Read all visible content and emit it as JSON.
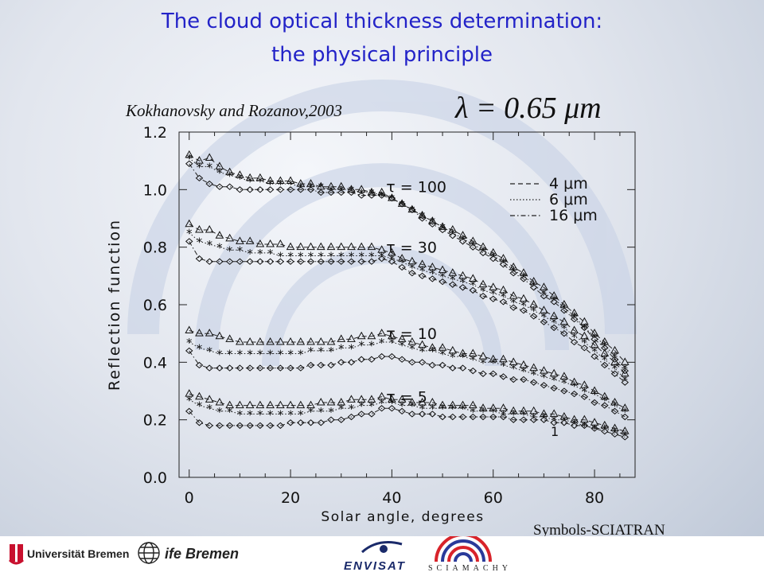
{
  "slide": {
    "title_line1": "The cloud optical thickness determination:",
    "title_line2": "the physical principle",
    "symbols_note": "Symbols-SCIATRAN"
  },
  "logos": {
    "uni": "Universität Bremen",
    "ife": "ife Bremen",
    "envisat": "ENVISAT",
    "sciamachy": "SCIAMACHY"
  },
  "colors": {
    "title": "#2323c8",
    "ink": "#111111"
  },
  "chart_data": {
    "type": "line",
    "citation": "Kokhanovsky and Rozanov,2003",
    "wavelength_label": "λ = 0.65 μm",
    "xlabel": "Solar angle, degrees",
    "ylabel": "Reflection function",
    "xlim": [
      -2,
      88
    ],
    "ylim": [
      0.0,
      1.2
    ],
    "xticks": [
      0,
      20,
      40,
      60,
      80
    ],
    "xtick_labels": [
      "0",
      "20",
      "40",
      "60",
      "80"
    ],
    "yticks": [
      0.0,
      0.2,
      0.4,
      0.6,
      0.8,
      1.0,
      1.2
    ],
    "ytick_labels": [
      "0.0",
      "0.2",
      "0.4",
      "0.6",
      "0.8",
      "1.0",
      "1.2"
    ],
    "legend": [
      {
        "dash": "--",
        "label": "4 μm"
      },
      {
        "dash": "....",
        "label": "6 μm"
      },
      {
        "dash": "-.-",
        "label": "16 μm"
      }
    ],
    "tau_labels": [
      {
        "text": "τ = 100",
        "x": 37,
        "y": 1.01
      },
      {
        "text": "τ = 30",
        "x": 37,
        "y": 0.8
      },
      {
        "text": "τ = 10",
        "x": 37,
        "y": 0.5
      },
      {
        "text": "τ = 5",
        "x": 37,
        "y": 0.28
      }
    ],
    "annotation": {
      "text": "1",
      "x": 65,
      "y": 0.14
    },
    "x": [
      0,
      2,
      4,
      6,
      8,
      10,
      12,
      14,
      16,
      18,
      20,
      22,
      24,
      26,
      28,
      30,
      32,
      34,
      36,
      38,
      40,
      42,
      44,
      46,
      48,
      50,
      52,
      54,
      56,
      58,
      60,
      62,
      64,
      66,
      68,
      70,
      72,
      74,
      76,
      78,
      80,
      82,
      84,
      86
    ],
    "series": [
      {
        "group": "τ = 100",
        "size": "4 μm",
        "marker": "triangle",
        "dash": "--",
        "values": [
          1.12,
          1.1,
          1.11,
          1.08,
          1.06,
          1.05,
          1.04,
          1.04,
          1.03,
          1.03,
          1.03,
          1.02,
          1.02,
          1.01,
          1.01,
          1.01,
          1.0,
          1.0,
          0.99,
          0.99,
          0.97,
          0.95,
          0.93,
          0.91,
          0.89,
          0.87,
          0.86,
          0.84,
          0.82,
          0.8,
          0.78,
          0.76,
          0.73,
          0.71,
          0.68,
          0.66,
          0.63,
          0.6,
          0.57,
          0.54,
          0.5,
          0.47,
          0.44,
          0.4
        ]
      },
      {
        "group": "τ = 100",
        "size": "6 μm",
        "marker": "star",
        "dash": "....",
        "values": [
          1.11,
          1.08,
          1.08,
          1.06,
          1.05,
          1.04,
          1.03,
          1.03,
          1.02,
          1.02,
          1.02,
          1.01,
          1.01,
          1.01,
          1.0,
          1.0,
          1.0,
          0.99,
          0.99,
          0.98,
          0.97,
          0.95,
          0.93,
          0.91,
          0.89,
          0.87,
          0.85,
          0.83,
          0.81,
          0.79,
          0.77,
          0.75,
          0.72,
          0.7,
          0.67,
          0.64,
          0.62,
          0.59,
          0.56,
          0.52,
          0.49,
          0.46,
          0.42,
          0.38
        ]
      },
      {
        "group": "τ = 100",
        "size": "16 μm",
        "marker": "diamond",
        "dash": "-.-",
        "values": [
          1.09,
          1.04,
          1.02,
          1.01,
          1.01,
          1.0,
          1.0,
          1.0,
          1.0,
          1.0,
          1.0,
          1.0,
          1.0,
          0.99,
          0.99,
          0.99,
          0.99,
          0.98,
          0.98,
          0.98,
          0.97,
          0.95,
          0.93,
          0.9,
          0.88,
          0.86,
          0.84,
          0.82,
          0.8,
          0.78,
          0.76,
          0.74,
          0.71,
          0.69,
          0.66,
          0.63,
          0.61,
          0.58,
          0.55,
          0.52,
          0.48,
          0.45,
          0.41,
          0.37
        ]
      },
      {
        "group": "τ = 30",
        "size": "4 μm",
        "marker": "triangle",
        "dash": "--",
        "values": [
          0.88,
          0.86,
          0.86,
          0.84,
          0.83,
          0.82,
          0.82,
          0.81,
          0.81,
          0.81,
          0.8,
          0.8,
          0.8,
          0.8,
          0.8,
          0.8,
          0.8,
          0.8,
          0.8,
          0.79,
          0.78,
          0.76,
          0.75,
          0.74,
          0.73,
          0.72,
          0.71,
          0.7,
          0.69,
          0.67,
          0.66,
          0.65,
          0.63,
          0.62,
          0.6,
          0.58,
          0.56,
          0.54,
          0.51,
          0.49,
          0.46,
          0.43,
          0.4,
          0.36
        ]
      },
      {
        "group": "τ = 30",
        "size": "6 μm",
        "marker": "star",
        "dash": "....",
        "values": [
          0.85,
          0.82,
          0.81,
          0.8,
          0.79,
          0.79,
          0.78,
          0.78,
          0.78,
          0.77,
          0.77,
          0.77,
          0.77,
          0.77,
          0.77,
          0.77,
          0.77,
          0.77,
          0.77,
          0.77,
          0.76,
          0.75,
          0.73,
          0.72,
          0.71,
          0.7,
          0.69,
          0.68,
          0.67,
          0.65,
          0.64,
          0.63,
          0.61,
          0.6,
          0.58,
          0.56,
          0.54,
          0.52,
          0.49,
          0.47,
          0.44,
          0.41,
          0.38,
          0.34
        ]
      },
      {
        "group": "τ = 30",
        "size": "16 μm",
        "marker": "diamond",
        "dash": "-.-",
        "values": [
          0.82,
          0.76,
          0.75,
          0.75,
          0.75,
          0.75,
          0.75,
          0.75,
          0.75,
          0.75,
          0.75,
          0.75,
          0.75,
          0.75,
          0.75,
          0.75,
          0.75,
          0.75,
          0.75,
          0.76,
          0.75,
          0.73,
          0.71,
          0.7,
          0.69,
          0.68,
          0.67,
          0.66,
          0.65,
          0.63,
          0.62,
          0.61,
          0.59,
          0.58,
          0.56,
          0.54,
          0.52,
          0.5,
          0.47,
          0.45,
          0.42,
          0.39,
          0.36,
          0.33
        ]
      },
      {
        "group": "τ = 10",
        "size": "4 μm",
        "marker": "triangle",
        "dash": "--",
        "values": [
          0.51,
          0.5,
          0.5,
          0.49,
          0.48,
          0.47,
          0.47,
          0.47,
          0.47,
          0.47,
          0.47,
          0.47,
          0.47,
          0.47,
          0.47,
          0.48,
          0.48,
          0.49,
          0.49,
          0.5,
          0.49,
          0.48,
          0.47,
          0.46,
          0.45,
          0.45,
          0.44,
          0.43,
          0.43,
          0.42,
          0.41,
          0.41,
          0.4,
          0.39,
          0.38,
          0.37,
          0.36,
          0.35,
          0.33,
          0.32,
          0.3,
          0.28,
          0.26,
          0.24
        ]
      },
      {
        "group": "τ = 10",
        "size": "6 μm",
        "marker": "star",
        "dash": "....",
        "values": [
          0.47,
          0.45,
          0.44,
          0.43,
          0.43,
          0.43,
          0.43,
          0.43,
          0.43,
          0.43,
          0.43,
          0.43,
          0.44,
          0.44,
          0.44,
          0.45,
          0.45,
          0.46,
          0.46,
          0.47,
          0.47,
          0.46,
          0.45,
          0.44,
          0.44,
          0.43,
          0.42,
          0.42,
          0.41,
          0.4,
          0.4,
          0.39,
          0.38,
          0.37,
          0.36,
          0.35,
          0.34,
          0.33,
          0.32,
          0.3,
          0.29,
          0.27,
          0.25,
          0.23
        ]
      },
      {
        "group": "τ = 10",
        "size": "16 μm",
        "marker": "diamond",
        "dash": "-.-",
        "values": [
          0.44,
          0.39,
          0.38,
          0.38,
          0.38,
          0.38,
          0.38,
          0.38,
          0.38,
          0.38,
          0.38,
          0.38,
          0.39,
          0.39,
          0.39,
          0.4,
          0.4,
          0.41,
          0.41,
          0.42,
          0.42,
          0.41,
          0.4,
          0.4,
          0.39,
          0.39,
          0.38,
          0.38,
          0.37,
          0.36,
          0.36,
          0.35,
          0.34,
          0.34,
          0.33,
          0.32,
          0.31,
          0.3,
          0.29,
          0.28,
          0.26,
          0.25,
          0.23,
          0.21
        ]
      },
      {
        "group": "τ = 5",
        "size": "4 μm",
        "marker": "triangle",
        "dash": "--",
        "values": [
          0.29,
          0.28,
          0.27,
          0.26,
          0.25,
          0.25,
          0.25,
          0.25,
          0.25,
          0.25,
          0.25,
          0.25,
          0.25,
          0.26,
          0.26,
          0.26,
          0.27,
          0.27,
          0.27,
          0.28,
          0.27,
          0.27,
          0.26,
          0.26,
          0.26,
          0.25,
          0.25,
          0.25,
          0.25,
          0.24,
          0.24,
          0.24,
          0.23,
          0.23,
          0.23,
          0.22,
          0.22,
          0.21,
          0.2,
          0.2,
          0.19,
          0.18,
          0.17,
          0.16
        ]
      },
      {
        "group": "τ = 5",
        "size": "6 μm",
        "marker": "star",
        "dash": "....",
        "values": [
          0.27,
          0.25,
          0.24,
          0.23,
          0.23,
          0.22,
          0.22,
          0.22,
          0.22,
          0.22,
          0.22,
          0.22,
          0.23,
          0.23,
          0.23,
          0.24,
          0.24,
          0.25,
          0.25,
          0.26,
          0.26,
          0.25,
          0.25,
          0.24,
          0.24,
          0.24,
          0.24,
          0.24,
          0.23,
          0.23,
          0.23,
          0.22,
          0.22,
          0.22,
          0.21,
          0.21,
          0.2,
          0.2,
          0.19,
          0.18,
          0.17,
          0.17,
          0.16,
          0.15
        ]
      },
      {
        "group": "τ = 5",
        "size": "16 μm",
        "marker": "diamond",
        "dash": "-.-",
        "values": [
          0.23,
          0.19,
          0.18,
          0.18,
          0.18,
          0.18,
          0.18,
          0.18,
          0.18,
          0.18,
          0.19,
          0.19,
          0.19,
          0.19,
          0.2,
          0.2,
          0.21,
          0.22,
          0.22,
          0.24,
          0.24,
          0.23,
          0.22,
          0.22,
          0.22,
          0.21,
          0.21,
          0.21,
          0.21,
          0.21,
          0.21,
          0.21,
          0.2,
          0.2,
          0.2,
          0.2,
          0.19,
          0.19,
          0.18,
          0.18,
          0.17,
          0.16,
          0.15,
          0.14
        ]
      }
    ]
  }
}
